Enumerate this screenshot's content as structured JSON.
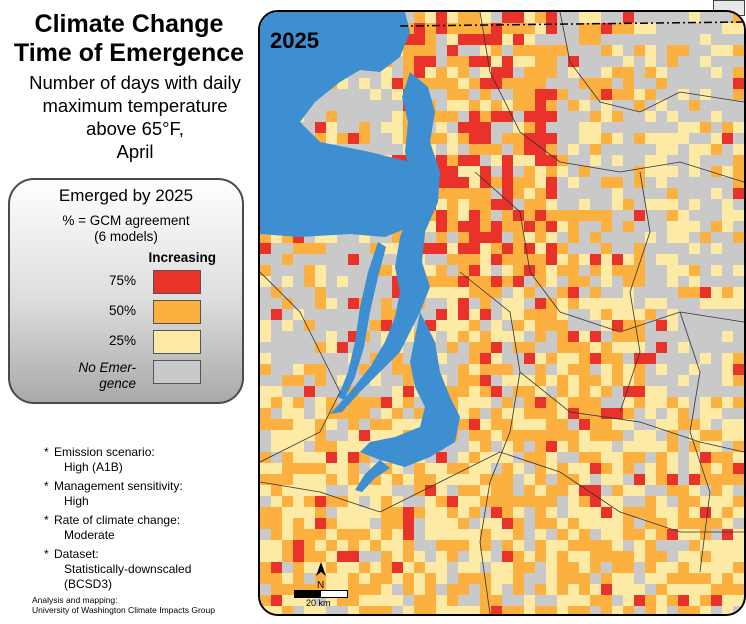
{
  "title_lines": [
    "Climate Change",
    "Time of Emergence"
  ],
  "subtitle_lines": [
    "Number of days with daily",
    "maximum temperature",
    "above 65°F,",
    "April"
  ],
  "map_year": "2025",
  "legend": {
    "title": "Emerged by 2025",
    "subtitle_lines": [
      "% = GCM agreement",
      "(6 models)"
    ],
    "increasing_label": "Increasing",
    "items": [
      {
        "label": "75%",
        "color": "#e8322a"
      },
      {
        "label": "50%",
        "color": "#fbb040"
      },
      {
        "label": "25%",
        "color": "#fdeaa4"
      },
      {
        "label_lines": [
          "No Emer-",
          "gence"
        ],
        "color": "#c9c9c9"
      }
    ]
  },
  "notes": [
    {
      "label": "Emission scenario:",
      "value": "High (A1B)"
    },
    {
      "label": "Management sensitivity:",
      "value": "High"
    },
    {
      "label": "Rate of climate change:",
      "value": "Moderate"
    },
    {
      "label": "Dataset:",
      "value_lines": [
        "Statistically-downscaled",
        "(BCSD3)"
      ]
    }
  ],
  "credit_lines": [
    "Analysis and mapping:",
    "University of Washington Climate Impacts Group"
  ],
  "scale_label": "20 km",
  "north_label": "N",
  "colors": {
    "water": "#3d8fd1",
    "land_outside": "#8f8f8f",
    "boundaries": "#333333"
  }
}
